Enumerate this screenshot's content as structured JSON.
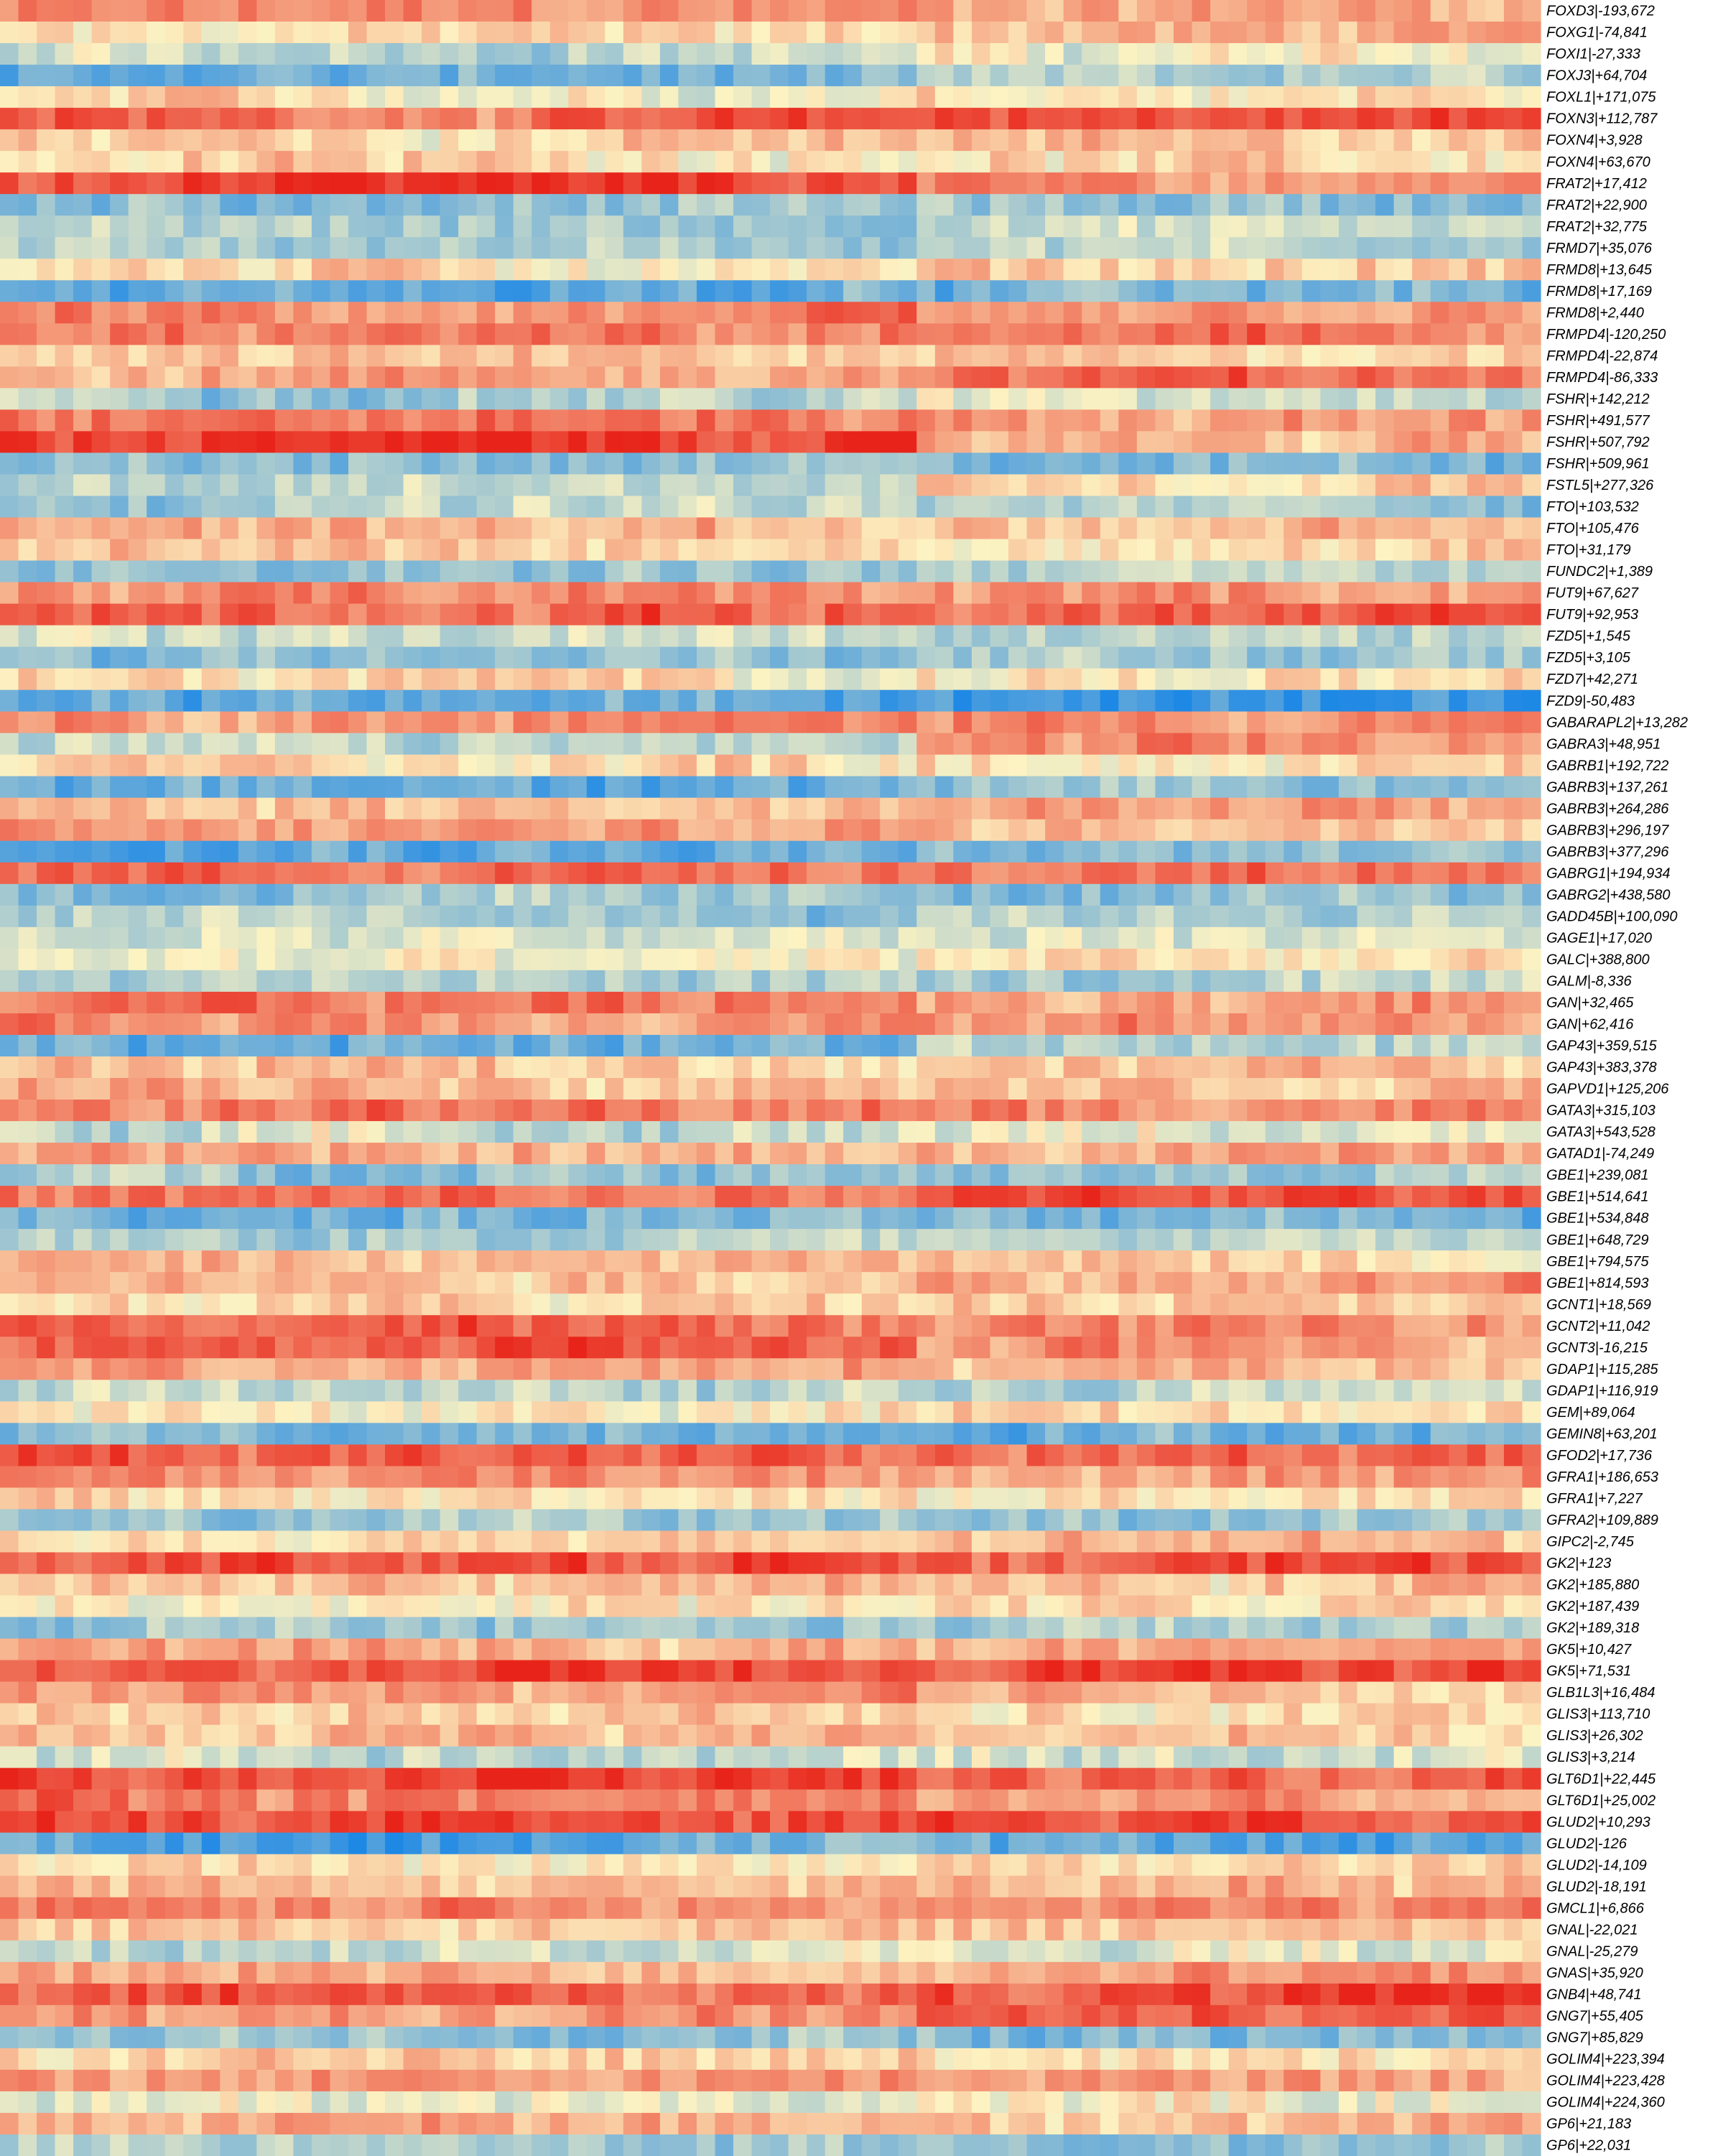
{
  "chart_data": {
    "type": "heatmap",
    "title": "",
    "xlabel": "",
    "ylabel": "",
    "colormap": {
      "low": "#1e88e5",
      "mid": "#fdf3c2",
      "high": "#e8241a"
    },
    "value_range": [
      -1,
      1
    ],
    "column_groups": [
      {
        "name": "",
        "fraction": 0.595
      },
      {
        "name": "",
        "fraction": 0.405
      }
    ],
    "rows": [
      {
        "label": "FOXD3|-193,672",
        "a": 0.45,
        "b": 0.4
      },
      {
        "label": "FOXG1|-74,841",
        "a": 0.1,
        "b": 0.3
      },
      {
        "label": "FOXI1|-27,333",
        "a": -0.2,
        "b": -0.05
      },
      {
        "label": "FOXJ3|+64,704",
        "a": -0.65,
        "b": -0.4
      },
      {
        "label": "FOXL1|+171,075",
        "a": 0.05,
        "b": 0.15
      },
      {
        "label": "FOXN3|+112,787",
        "a": 0.65,
        "b": 0.8
      },
      {
        "label": "FOXN4|+3,928",
        "a": 0.2,
        "b": 0.25
      },
      {
        "label": "FOXN4|+63,670",
        "a": 0.15,
        "b": 0.1
      },
      {
        "label": "FRAT2|+17,412",
        "a": 0.8,
        "b": 0.45
      },
      {
        "label": "FRAT2|+22,900",
        "a": -0.45,
        "b": -0.45
      },
      {
        "label": "FRAT2|+32,775",
        "a": -0.4,
        "b": -0.25
      },
      {
        "label": "FRMD7|+35,076",
        "a": -0.35,
        "b": -0.3
      },
      {
        "label": "FRMD8|+13,645",
        "a": 0.1,
        "b": 0.2
      },
      {
        "label": "FRMD8|+17,169",
        "a": -0.7,
        "b": -0.6
      },
      {
        "label": "FRMD8|+2,440",
        "a": 0.45,
        "b": 0.35
      },
      {
        "label": "FRMPD4|-120,250",
        "a": 0.5,
        "b": 0.55
      },
      {
        "label": "FRMPD4|-22,874",
        "a": 0.15,
        "b": 0.2
      },
      {
        "label": "FRMPD4|-86,333",
        "a": 0.4,
        "b": 0.6
      },
      {
        "label": "FSHR|+142,212",
        "a": -0.3,
        "b": -0.1
      },
      {
        "label": "FSHR|+491,577",
        "a": 0.6,
        "b": 0.4
      },
      {
        "label": "FSHR|+507,792",
        "a": 0.9,
        "b": 0.35
      },
      {
        "label": "FSHR|+509,961",
        "a": -0.55,
        "b": -0.55
      },
      {
        "label": "FSTL5|+277,326",
        "a": -0.25,
        "b": 0.25
      },
      {
        "label": "FTO|+103,532",
        "a": -0.3,
        "b": -0.35
      },
      {
        "label": "FTO|+105,476",
        "a": 0.3,
        "b": 0.2
      },
      {
        "label": "FTO|+31,179",
        "a": 0.2,
        "b": 0.15
      },
      {
        "label": "FUNDC2|+1,389",
        "a": -0.4,
        "b": -0.3
      },
      {
        "label": "FUT9|+67,627",
        "a": 0.45,
        "b": 0.45
      },
      {
        "label": "FUT9|+92,953",
        "a": 0.7,
        "b": 0.7
      },
      {
        "label": "FZD5|+1,545",
        "a": -0.2,
        "b": -0.3
      },
      {
        "label": "FZD5|+3,105",
        "a": -0.45,
        "b": -0.4
      },
      {
        "label": "FZD7|+42,271",
        "a": 0.1,
        "b": 0.05
      },
      {
        "label": "FZD9|-50,483",
        "a": -0.7,
        "b": -0.75
      },
      {
        "label": "GABARAPL2|+13,282",
        "a": 0.5,
        "b": 0.55
      },
      {
        "label": "GABRA3|+48,951",
        "a": -0.3,
        "b": 0.4
      },
      {
        "label": "GABRB1|+192,722",
        "a": 0.15,
        "b": 0.1
      },
      {
        "label": "GABRB3|+137,261",
        "a": -0.6,
        "b": -0.55
      },
      {
        "label": "GABRB3|+264,286",
        "a": 0.3,
        "b": 0.35
      },
      {
        "label": "GABRB3|+296,197",
        "a": 0.4,
        "b": 0.3
      },
      {
        "label": "GABRB3|+377,296",
        "a": -0.6,
        "b": -0.55
      },
      {
        "label": "GABRG1|+194,934",
        "a": 0.7,
        "b": 0.65
      },
      {
        "label": "GABRG2|+438,580",
        "a": -0.5,
        "b": -0.45
      },
      {
        "label": "GADD45B|+100,090",
        "a": -0.4,
        "b": -0.3
      },
      {
        "label": "GAGE1|+17,020",
        "a": -0.2,
        "b": -0.15
      },
      {
        "label": "GALC|+388,800",
        "a": -0.1,
        "b": 0.1
      },
      {
        "label": "GALM|-8,336",
        "a": -0.35,
        "b": -0.4
      },
      {
        "label": "GAN|+32,465",
        "a": 0.6,
        "b": 0.45
      },
      {
        "label": "GAN|+62,416",
        "a": 0.5,
        "b": 0.4
      },
      {
        "label": "GAP43|+359,515",
        "a": -0.65,
        "b": -0.3
      },
      {
        "label": "GAP43|+383,378",
        "a": 0.2,
        "b": 0.25
      },
      {
        "label": "GAPVD1|+125,206",
        "a": 0.35,
        "b": 0.3
      },
      {
        "label": "GATA3|+315,103",
        "a": 0.55,
        "b": 0.5
      },
      {
        "label": "GATA3|+543,528",
        "a": -0.2,
        "b": -0.1
      },
      {
        "label": "GATAD1|-74,249",
        "a": 0.3,
        "b": 0.35
      },
      {
        "label": "GBE1|+239,081",
        "a": -0.4,
        "b": -0.35
      },
      {
        "label": "GBE1|+514,641",
        "a": 0.55,
        "b": 0.75
      },
      {
        "label": "GBE1|+534,848",
        "a": -0.55,
        "b": -0.65
      },
      {
        "label": "GBE1|+648,729",
        "a": -0.3,
        "b": -0.2
      },
      {
        "label": "GBE1|+794,575",
        "a": 0.25,
        "b": 0.2
      },
      {
        "label": "GBE1|+814,593",
        "a": 0.3,
        "b": 0.4
      },
      {
        "label": "GCNT1|+18,569",
        "a": 0.15,
        "b": 0.3
      },
      {
        "label": "GCNT2|+11,042",
        "a": 0.65,
        "b": 0.45
      },
      {
        "label": "GCNT3|-16,215",
        "a": 0.7,
        "b": 0.4
      },
      {
        "label": "GDAP1|+115,285",
        "a": 0.45,
        "b": 0.3
      },
      {
        "label": "GDAP1|+116,919",
        "a": -0.3,
        "b": -0.25
      },
      {
        "label": "GEM|+89,064",
        "a": 0.05,
        "b": 0.1
      },
      {
        "label": "GEMIN8|+63,201",
        "a": -0.55,
        "b": -0.6
      },
      {
        "label": "GFOD2|+17,736",
        "a": 0.75,
        "b": 0.7
      },
      {
        "label": "GFRA1|+186,653",
        "a": 0.5,
        "b": 0.4
      },
      {
        "label": "GFRA1|+7,227",
        "a": 0.1,
        "b": 0.05
      },
      {
        "label": "GFRA2|+109,889",
        "a": -0.45,
        "b": -0.4
      },
      {
        "label": "GIPC2|-2,745",
        "a": 0.1,
        "b": 0.25
      },
      {
        "label": "GK2|+123",
        "a": 0.8,
        "b": 0.75
      },
      {
        "label": "GK2|+185,880",
        "a": 0.25,
        "b": 0.2
      },
      {
        "label": "GK2|+187,439",
        "a": 0.1,
        "b": 0.05
      },
      {
        "label": "GK2|+189,318",
        "a": -0.45,
        "b": -0.4
      },
      {
        "label": "GK5|+10,427",
        "a": 0.35,
        "b": 0.3
      },
      {
        "label": "GK5|+71,531",
        "a": 0.75,
        "b": 0.85
      },
      {
        "label": "GLB1L3|+16,484",
        "a": 0.4,
        "b": 0.3
      },
      {
        "label": "GLIS3|+113,710",
        "a": 0.15,
        "b": 0.1
      },
      {
        "label": "GLIS3|+26,302",
        "a": 0.3,
        "b": 0.2
      },
      {
        "label": "GLIS3|+3,214",
        "a": -0.2,
        "b": -0.15
      },
      {
        "label": "GLT6D1|+22,445",
        "a": 0.85,
        "b": 0.7
      },
      {
        "label": "GLT6D1|+25,002",
        "a": 0.55,
        "b": 0.4
      },
      {
        "label": "GLUD2|+10,293",
        "a": 0.85,
        "b": 0.85
      },
      {
        "label": "GLUD2|-126",
        "a": -0.65,
        "b": -0.7
      },
      {
        "label": "GLUD2|-14,109",
        "a": 0.1,
        "b": 0.15
      },
      {
        "label": "GLUD2|-18,191",
        "a": 0.3,
        "b": 0.25
      },
      {
        "label": "GMCL1|+6,866",
        "a": 0.55,
        "b": 0.5
      },
      {
        "label": "GNAL|-22,021",
        "a": 0.2,
        "b": 0.25
      },
      {
        "label": "GNAL|-25,279",
        "a": -0.2,
        "b": -0.1
      },
      {
        "label": "GNAS|+35,920",
        "a": 0.35,
        "b": 0.4
      },
      {
        "label": "GNB4|+48,741",
        "a": 0.7,
        "b": 0.75
      },
      {
        "label": "GNG7|+55,405",
        "a": 0.5,
        "b": 0.65
      },
      {
        "label": "GNG7|+85,829",
        "a": -0.45,
        "b": -0.5
      },
      {
        "label": "GOLIM4|+223,394",
        "a": 0.15,
        "b": 0.2
      },
      {
        "label": "GOLIM4|+223,428",
        "a": 0.45,
        "b": 0.4
      },
      {
        "label": "GOLIM4|+224,360",
        "a": -0.1,
        "b": 0.0
      },
      {
        "label": "GP6|+21,183",
        "a": 0.35,
        "b": 0.3
      },
      {
        "label": "GP6|+22,031",
        "a": -0.35,
        "b": -0.45
      }
    ]
  }
}
